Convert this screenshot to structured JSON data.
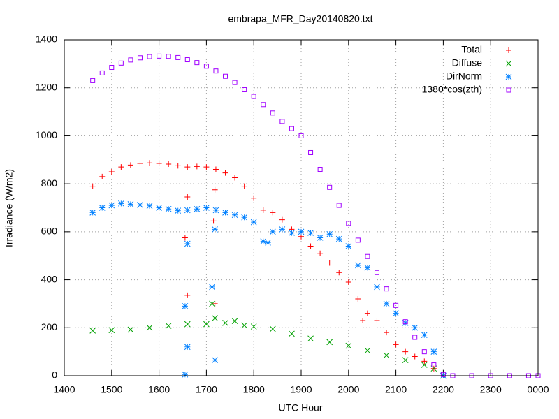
{
  "chart_data": {
    "type": "scatter",
    "title": "embrapa_MFR_Day20140820.txt",
    "x_label": "UTC Hour",
    "y_label": "Irradiance (W/m2)",
    "xlim": [
      1400,
      2400
    ],
    "ylim": [
      0,
      1400
    ],
    "xticks": [
      1400,
      1500,
      1600,
      1700,
      1800,
      1900,
      2000,
      2100,
      2200,
      2300,
      {
        "value": 2400,
        "label": "0000"
      }
    ],
    "yticks": [
      0,
      200,
      400,
      600,
      800,
      1000,
      1200,
      1400
    ],
    "grid": true,
    "legend": "top right",
    "series": [
      {
        "name": "Total",
        "color": "#ff0000",
        "marker": "plus",
        "x": [
          1460,
          1480,
          1500,
          1520,
          1540,
          1560,
          1580,
          1600,
          1620,
          1640,
          1655,
          1660,
          1660,
          1660,
          1680,
          1700,
          1715,
          1718,
          1718,
          1720,
          1740,
          1760,
          1780,
          1800,
          1820,
          1840,
          1860,
          1880,
          1900,
          1920,
          1940,
          1960,
          1980,
          2000,
          2020,
          2030,
          2040,
          2060,
          2080,
          2100,
          2120,
          2140,
          2160,
          2180,
          2200
        ],
        "values": [
          790,
          830,
          850,
          870,
          878,
          885,
          887,
          885,
          882,
          875,
          575,
          870,
          745,
          335,
          872,
          870,
          645,
          775,
          300,
          860,
          845,
          825,
          790,
          740,
          690,
          680,
          650,
          610,
          580,
          540,
          510,
          470,
          430,
          390,
          320,
          230,
          260,
          230,
          180,
          130,
          100,
          80,
          60,
          30,
          0
        ]
      },
      {
        "name": "Diffuse",
        "color": "#00a000",
        "marker": "cross",
        "x": [
          1460,
          1500,
          1540,
          1580,
          1620,
          1660,
          1700,
          1712,
          1718,
          1740,
          1760,
          1780,
          1800,
          1840,
          1880,
          1920,
          1960,
          2000,
          2040,
          2080,
          2120,
          2160,
          2180,
          2200
        ],
        "values": [
          188,
          190,
          192,
          200,
          208,
          215,
          215,
          300,
          240,
          220,
          228,
          210,
          205,
          195,
          175,
          155,
          140,
          125,
          105,
          85,
          65,
          45,
          30,
          0
        ]
      },
      {
        "name": "DirNorm",
        "color": "#0080ff",
        "marker": "star",
        "x": [
          1460,
          1480,
          1500,
          1520,
          1540,
          1560,
          1580,
          1600,
          1620,
          1640,
          1655,
          1655,
          1660,
          1660,
          1660,
          1680,
          1700,
          1712,
          1718,
          1718,
          1720,
          1740,
          1760,
          1780,
          1800,
          1820,
          1830,
          1840,
          1860,
          1880,
          1900,
          1920,
          1940,
          1960,
          1980,
          2000,
          2020,
          2040,
          2060,
          2080,
          2100,
          2120,
          2140,
          2160,
          2180,
          2200
        ],
        "values": [
          680,
          700,
          710,
          718,
          715,
          712,
          708,
          700,
          695,
          688,
          290,
          5,
          690,
          550,
          120,
          695,
          700,
          370,
          610,
          65,
          690,
          680,
          670,
          660,
          640,
          560,
          555,
          600,
          610,
          595,
          600,
          595,
          575,
          590,
          570,
          540,
          460,
          450,
          370,
          300,
          260,
          220,
          200,
          170,
          100,
          0
        ]
      },
      {
        "name": "1380*cos(zth)",
        "color": "#a000ff",
        "marker": "square",
        "x": [
          1460,
          1480,
          1500,
          1520,
          1540,
          1560,
          1580,
          1600,
          1620,
          1640,
          1660,
          1680,
          1700,
          1720,
          1740,
          1760,
          1780,
          1800,
          1820,
          1840,
          1860,
          1880,
          1900,
          1920,
          1940,
          1960,
          1980,
          2000,
          2020,
          2040,
          2060,
          2080,
          2100,
          2120,
          2140,
          2160,
          2180,
          2200,
          2220,
          2260,
          2300,
          2340,
          2380,
          2400
        ],
        "values": [
          1230,
          1262,
          1285,
          1303,
          1316,
          1325,
          1330,
          1332,
          1331,
          1326,
          1317,
          1305,
          1290,
          1270,
          1248,
          1222,
          1192,
          1164,
          1130,
          1095,
          1060,
          1030,
          1000,
          930,
          860,
          785,
          710,
          635,
          565,
          497,
          430,
          362,
          293,
          225,
          160,
          100,
          45,
          5,
          0,
          0,
          0,
          0,
          0,
          0
        ]
      }
    ]
  }
}
